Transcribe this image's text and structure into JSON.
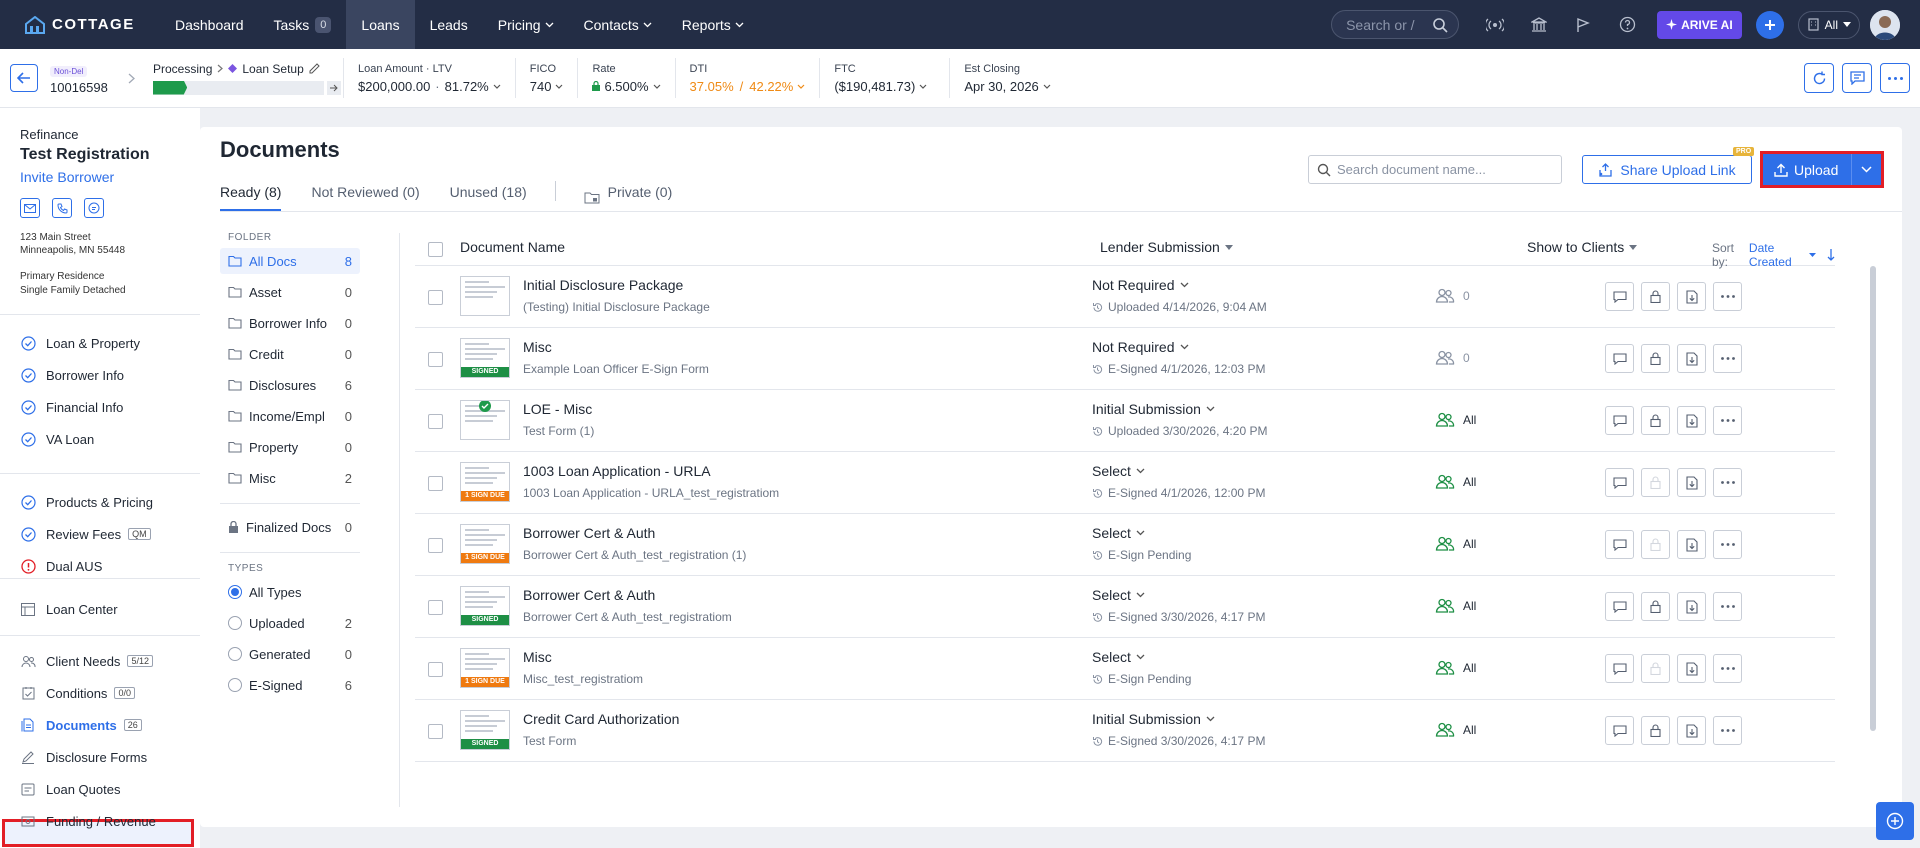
{
  "nav": {
    "brand": "COTTAGE",
    "items": [
      {
        "label": "Dashboard"
      },
      {
        "label": "Tasks",
        "badge": "0"
      },
      {
        "label": "Loans",
        "active": true
      },
      {
        "label": "Leads"
      },
      {
        "label": "Pricing",
        "dropdown": true
      },
      {
        "label": "Contacts",
        "dropdown": true
      },
      {
        "label": "Reports",
        "dropdown": true
      }
    ],
    "search_placeholder": "Search or /",
    "arive_label": "ARIVE AI",
    "scope_label": "All"
  },
  "loanbar": {
    "loan_tag": "Non-Del",
    "loan_number": "10016598",
    "stage": "Processing",
    "substage": "Loan Setup",
    "progress_segments": 8,
    "progress_filled": 1,
    "metrics": {
      "amount_label": "Loan Amount · LTV",
      "amount_value": "$200,000.00",
      "ltv_value": "81.72%",
      "fico_label": "FICO",
      "fico_value": "740",
      "rate_label": "Rate",
      "rate_value": "6.500%",
      "dti_label": "DTI",
      "dti_front": "37.05%",
      "dti_sep": "/",
      "dti_back": "42.22%",
      "ftc_label": "FTC",
      "ftc_value": "($190,481.73)",
      "close_label": "Est Closing",
      "close_value": "Apr 30, 2026"
    }
  },
  "sidebar": {
    "loan_type": "Refinance",
    "borrower": "Test Registration",
    "invite": "Invite Borrower",
    "address1": "123 Main Street",
    "address2": "Minneapolis, MN 55448",
    "occupancy": "Primary Residence",
    "property_type": "Single Family Detached",
    "group1": [
      {
        "label": "Loan & Property",
        "icon": "check-circle-icon"
      },
      {
        "label": "Borrower Info",
        "icon": "check-circle-icon"
      },
      {
        "label": "Financial Info",
        "icon": "check-circle-icon"
      },
      {
        "label": "VA Loan",
        "icon": "check-circle-icon"
      }
    ],
    "group2": [
      {
        "label": "Products & Pricing",
        "icon": "check-circle-icon"
      },
      {
        "label": "Review Fees",
        "icon": "check-circle-icon",
        "badge": "QM"
      },
      {
        "label": "Dual AUS",
        "icon": "alert-circle-icon"
      }
    ],
    "loan_center": "Loan Center",
    "group3": [
      {
        "label": "Client Needs",
        "badge": "5/12",
        "icon": "people-icon"
      },
      {
        "label": "Conditions",
        "badge": "0/0",
        "icon": "conditions-icon"
      },
      {
        "label": "Documents",
        "badge": "26",
        "icon": "documents-icon",
        "active": true
      },
      {
        "label": "Disclosure Forms",
        "icon": "pen-icon"
      },
      {
        "label": "Loan Quotes",
        "icon": "quote-icon"
      },
      {
        "label": "Funding / Revenue",
        "icon": "funding-icon"
      }
    ]
  },
  "documents": {
    "title": "Documents",
    "tabs": [
      {
        "label": "Ready (8)",
        "active": true
      },
      {
        "label": "Not Reviewed (0)"
      },
      {
        "label": "Unused (18)"
      }
    ],
    "private_tab": "Private (0)",
    "search_placeholder": "Search document name...",
    "share_label": "Share Upload Link",
    "pro_badge": "PRO",
    "upload_label": "Upload",
    "folder_heading": "FOLDER",
    "folders": [
      {
        "name": "All Docs",
        "count": "8",
        "active": true
      },
      {
        "name": "Asset",
        "count": "0"
      },
      {
        "name": "Borrower Info",
        "count": "0"
      },
      {
        "name": "Credit",
        "count": "0"
      },
      {
        "name": "Disclosures",
        "count": "6"
      },
      {
        "name": "Income/Empl",
        "count": "0"
      },
      {
        "name": "Property",
        "count": "0"
      },
      {
        "name": "Misc",
        "count": "2"
      }
    ],
    "finalized": {
      "name": "Finalized Docs",
      "count": "0"
    },
    "types_heading": "TYPES",
    "types": [
      {
        "name": "All Types",
        "count": "",
        "selected": true
      },
      {
        "name": "Uploaded",
        "count": "2"
      },
      {
        "name": "Generated",
        "count": "0"
      },
      {
        "name": "E-Signed",
        "count": "6"
      }
    ],
    "columns": {
      "name": "Document Name",
      "lender": "Lender Submission",
      "show": "Show to Clients",
      "sortby_label": "Sort by:",
      "sortby_value": "Date Created"
    },
    "rows": [
      {
        "name": "Initial Disclosure Package",
        "sub": "(Testing) Initial Disclosure Package",
        "status": "Not Required",
        "date": "Uploaded 4/14/2026, 9:04 AM",
        "show": "0",
        "tag": "",
        "check": false,
        "lock_disabled": false
      },
      {
        "name": "Misc",
        "sub": "Example Loan Officer E-Sign Form",
        "status": "Not Required",
        "date": "E-Signed 4/1/2026, 12:03 PM",
        "show": "0",
        "tag": "SIGNED",
        "check": false,
        "lock_disabled": false
      },
      {
        "name": "LOE - Misc",
        "sub": "Test Form (1)",
        "status": "Initial Submission",
        "date": "Uploaded 3/30/2026, 4:20 PM",
        "show": "All",
        "tag": "",
        "check": true,
        "lock_disabled": false
      },
      {
        "name": "1003 Loan Application - URLA",
        "sub": "1003 Loan Application - URLA_test_registratiom",
        "status": "Select",
        "date": "E-Signed 4/1/2026, 12:00 PM",
        "show": "All",
        "tag": "1 SIGN DUE",
        "check": false,
        "lock_disabled": true
      },
      {
        "name": "Borrower Cert & Auth",
        "sub": "Borrower Cert & Auth_test_registration (1)",
        "status": "Select",
        "date": "E-Sign Pending",
        "show": "All",
        "tag": "1 SIGN DUE",
        "check": false,
        "lock_disabled": true
      },
      {
        "name": "Borrower Cert & Auth",
        "sub": "Borrower Cert & Auth_test_registratiom",
        "status": "Select",
        "date": "E-Signed 3/30/2026, 4:17 PM",
        "show": "All",
        "tag": "SIGNED",
        "check": false,
        "lock_disabled": false
      },
      {
        "name": "Misc",
        "sub": "Misc_test_registratiom",
        "status": "Select",
        "date": "E-Sign Pending",
        "show": "All",
        "tag": "1 SIGN DUE",
        "check": false,
        "lock_disabled": true
      },
      {
        "name": "Credit Card Authorization",
        "sub": "Test Form",
        "status": "Initial Submission",
        "date": "E-Signed 3/30/2026, 4:17 PM",
        "show": "All",
        "tag": "SIGNED",
        "check": false,
        "lock_disabled": false
      }
    ]
  },
  "colors": {
    "nav_bg": "#232d45",
    "accent": "#2e6fe8",
    "signed": "#1e8f45",
    "due": "#ef7a10",
    "highlight": "#e21e26"
  }
}
